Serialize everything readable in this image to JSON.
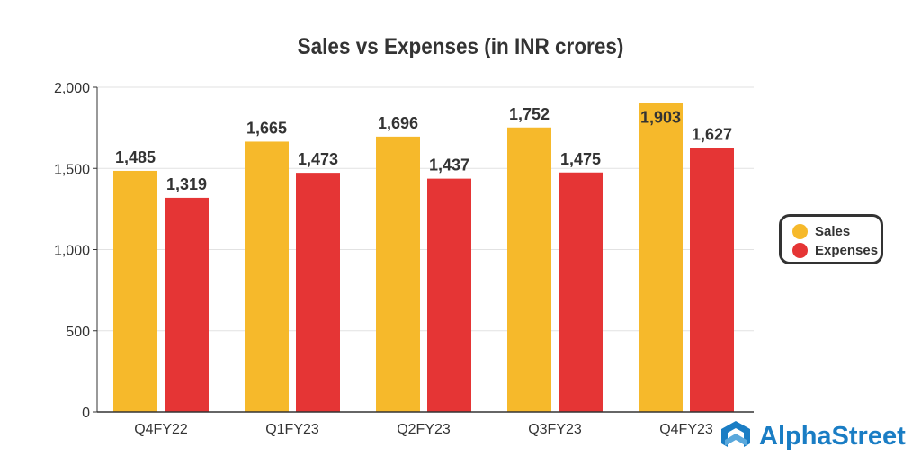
{
  "chart_data": {
    "type": "bar",
    "title": "Sales vs Expenses (in INR crores)",
    "categories": [
      "Q4FY22",
      "Q1FY23",
      "Q2FY23",
      "Q3FY23",
      "Q4FY23"
    ],
    "series": [
      {
        "name": "Sales",
        "color": "#f6b92b",
        "values": [
          1485,
          1665,
          1696,
          1752,
          1903
        ],
        "labels": [
          "1,485",
          "1,665",
          "1,696",
          "1,752",
          "1,903"
        ]
      },
      {
        "name": "Expenses",
        "color": "#e53535",
        "values": [
          1319,
          1473,
          1437,
          1475,
          1627
        ],
        "labels": [
          "1,319",
          "1,473",
          "1,437",
          "1,475",
          "1,627"
        ]
      }
    ],
    "yticks": [
      0,
      500,
      1000,
      1500,
      2000
    ],
    "ytick_labels": [
      "0",
      "500",
      "1,000",
      "1,500",
      "2,000"
    ],
    "ylim": [
      0,
      2000
    ],
    "grid": true,
    "legend": "right"
  },
  "brand": {
    "name": "AlphaStreet",
    "color": "#1a7dc4"
  }
}
